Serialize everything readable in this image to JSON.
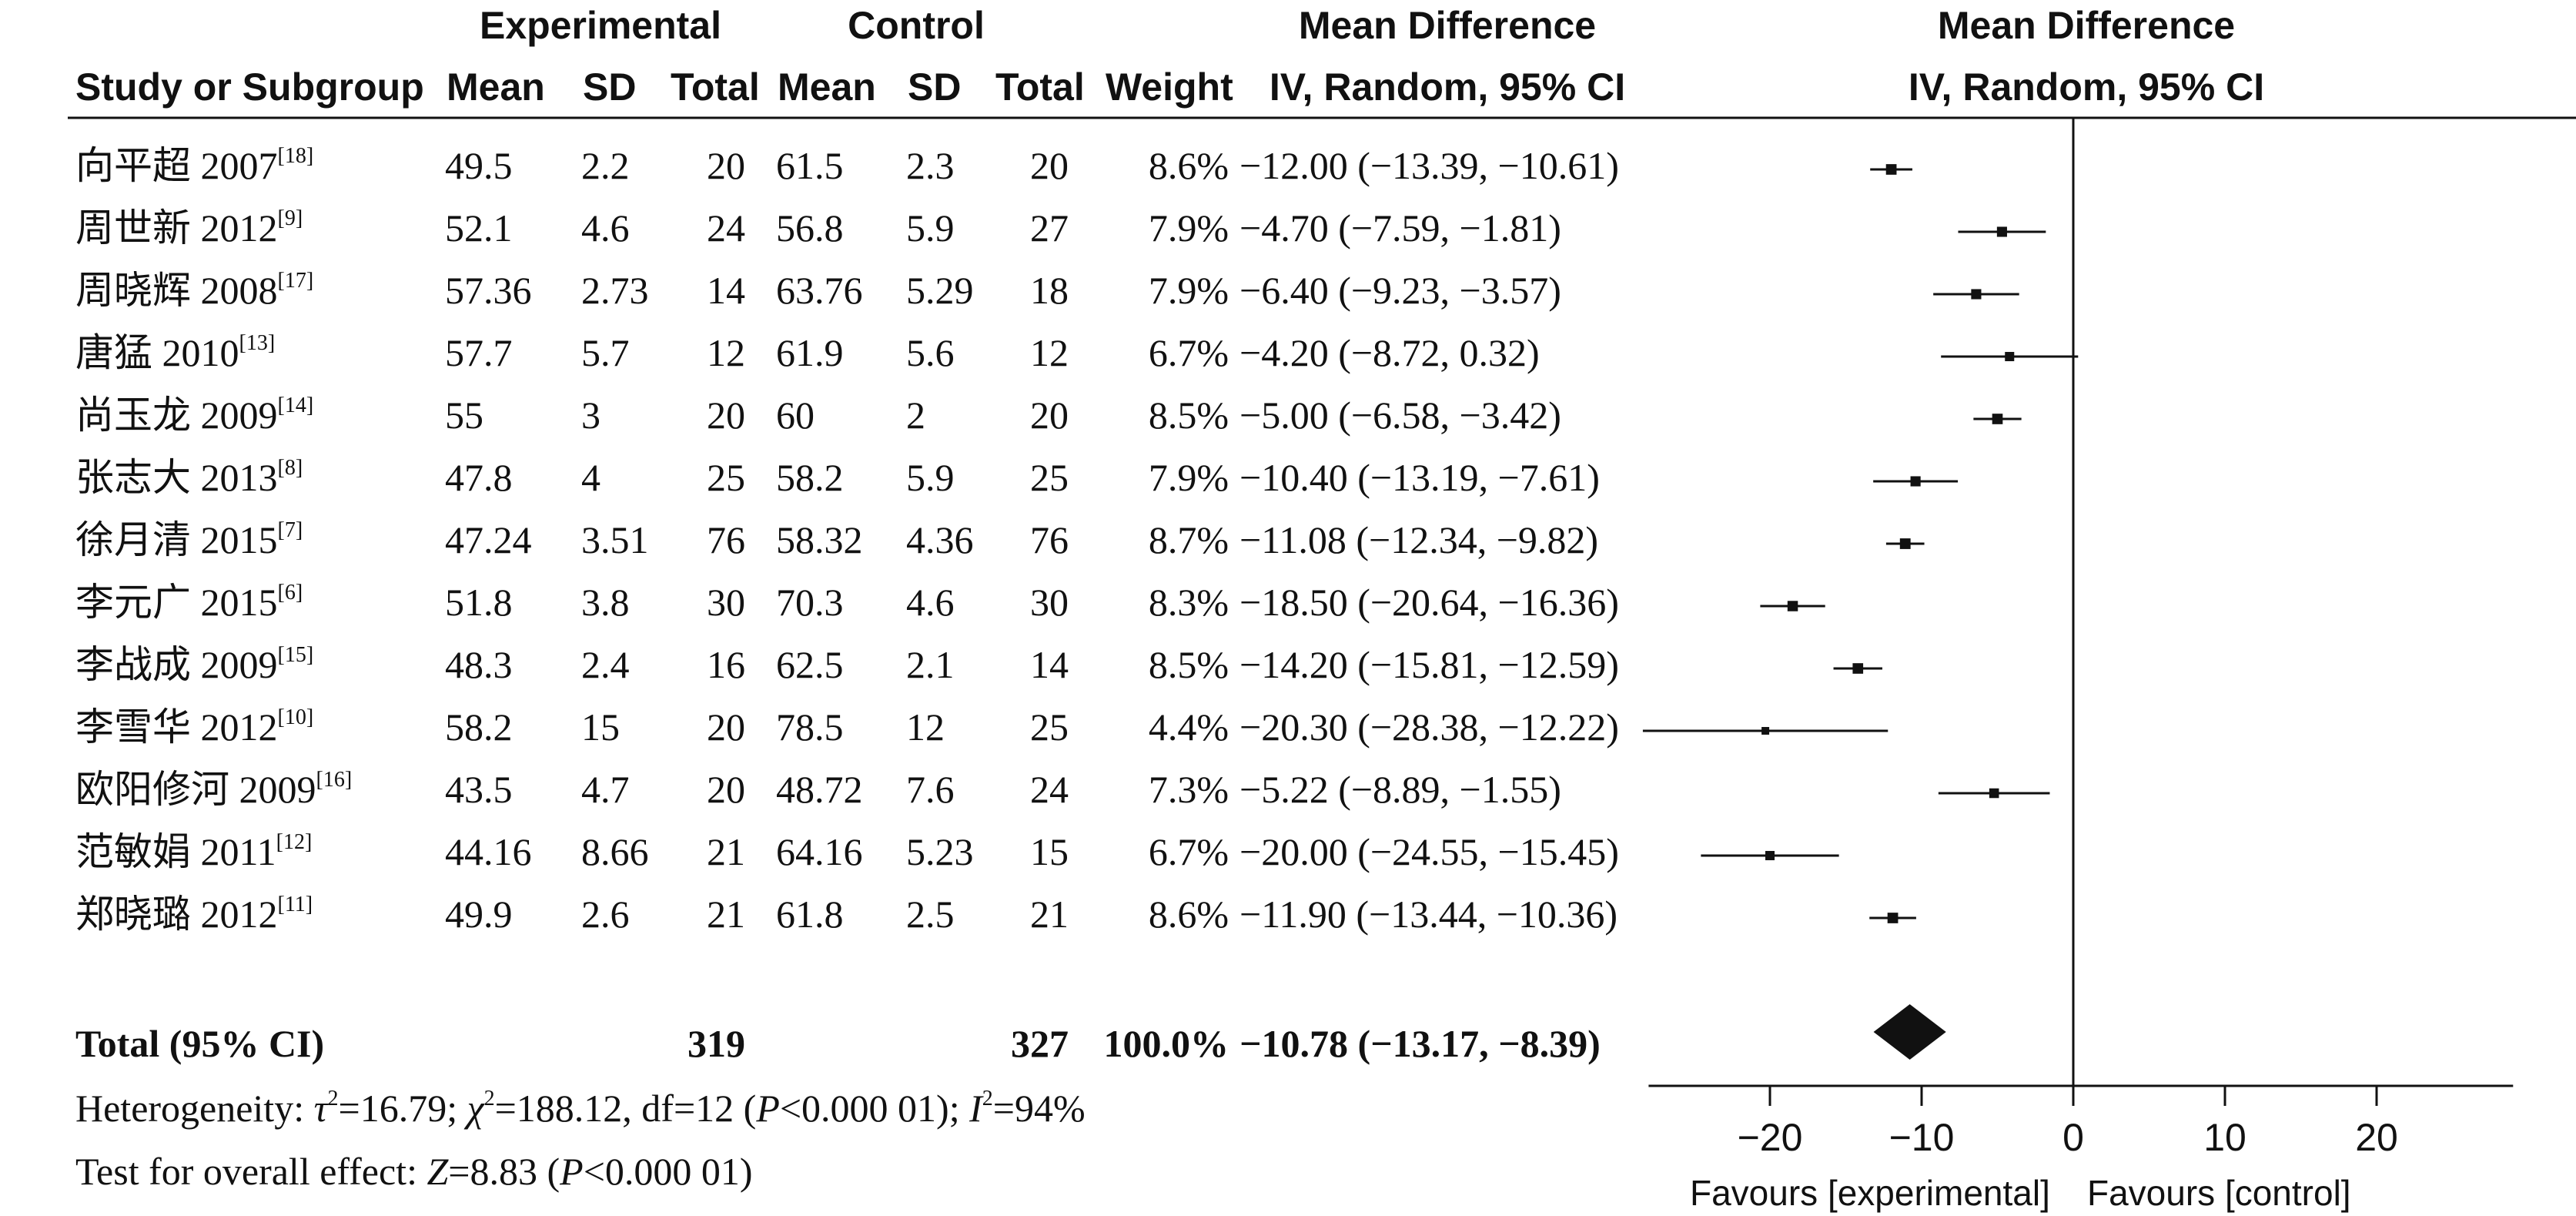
{
  "header": {
    "experimental": "Experimental",
    "control": "Control",
    "md_col": "Mean Difference",
    "md_plot": "Mean Difference",
    "study": "Study or Subgroup",
    "mean_e": "Mean",
    "sd_e": "SD",
    "total_e": "Total",
    "mean_c": "Mean",
    "sd_c": "SD",
    "total_c": "Total",
    "weight": "Weight",
    "method_col": "IV, Random, 95% CI",
    "method_plot": "IV, Random, 95% CI"
  },
  "footer": {
    "total_label": "Total (95% CI)",
    "total_e": "319",
    "total_c": "327",
    "total_weight": "100.0%",
    "total_ci": "−10.78 (−13.17, −8.39)",
    "het_prefix": "Heterogeneity: ",
    "het_tau": "τ",
    "het_tau_val": "=16.79; ",
    "het_chi": "χ",
    "het_chi_val": "=188.12, df=12 (",
    "het_p": "P",
    "het_p_val": "<0.000 01); ",
    "het_i": "I",
    "het_i_val": "=94%",
    "test_prefix": "Test for overall effect: ",
    "test_z": "Z",
    "test_z_val": "=8.83 (",
    "test_p": "P",
    "test_p_val": "<0.000 01)",
    "favours_left": "Favours [experimental]",
    "favours_right": "Favours [control]"
  },
  "chart_data": {
    "type": "forest",
    "xlabel_left": "Favours [experimental]",
    "xlabel_right": "Favours [control]",
    "xlim": [
      -28,
      29
    ],
    "xticks": [
      -20,
      -10,
      0,
      10,
      20
    ],
    "xtick_labels": [
      "−20",
      "−10",
      "0",
      "10",
      "20"
    ],
    "studies": [
      {
        "name": "向平超 2007",
        "ref": "[18]",
        "mean_e": "49.5",
        "sd_e": "2.2",
        "n_e": "20",
        "mean_c": "61.5",
        "sd_c": "2.3",
        "n_c": "20",
        "weight": "8.6%",
        "ci_text": "−12.00 (−13.39, −10.61)",
        "md": -12.0,
        "lo": -13.39,
        "hi": -10.61,
        "w": 8.6
      },
      {
        "name": "周世新 2012",
        "ref": "[9]",
        "mean_e": "52.1",
        "sd_e": "4.6",
        "n_e": "24",
        "mean_c": "56.8",
        "sd_c": "5.9",
        "n_c": "27",
        "weight": "7.9%",
        "ci_text": "−4.70 (−7.59, −1.81)",
        "md": -4.7,
        "lo": -7.59,
        "hi": -1.81,
        "w": 7.9
      },
      {
        "name": "周晓辉 2008",
        "ref": "[17]",
        "mean_e": "57.36",
        "sd_e": "2.73",
        "n_e": "14",
        "mean_c": "63.76",
        "sd_c": "5.29",
        "n_c": "18",
        "weight": "7.9%",
        "ci_text": "−6.40 (−9.23, −3.57)",
        "md": -6.4,
        "lo": -9.23,
        "hi": -3.57,
        "w": 7.9
      },
      {
        "name": "唐猛 2010",
        "ref": "[13]",
        "mean_e": "57.7",
        "sd_e": "5.7",
        "n_e": "12",
        "mean_c": "61.9",
        "sd_c": "5.6",
        "n_c": "12",
        "weight": "6.7%",
        "ci_text": "−4.20 (−8.72, 0.32)",
        "md": -4.2,
        "lo": -8.72,
        "hi": 0.32,
        "w": 6.7
      },
      {
        "name": "尚玉龙 2009",
        "ref": "[14]",
        "mean_e": "55",
        "sd_e": "3",
        "n_e": "20",
        "mean_c": "60",
        "sd_c": "2",
        "n_c": "20",
        "weight": "8.5%",
        "ci_text": "−5.00 (−6.58, −3.42)",
        "md": -5.0,
        "lo": -6.58,
        "hi": -3.42,
        "w": 8.5
      },
      {
        "name": "张志大 2013",
        "ref": "[8]",
        "mean_e": "47.8",
        "sd_e": "4",
        "n_e": "25",
        "mean_c": "58.2",
        "sd_c": "5.9",
        "n_c": "25",
        "weight": "7.9%",
        "ci_text": "−10.40 (−13.19, −7.61)",
        "md": -10.4,
        "lo": -13.19,
        "hi": -7.61,
        "w": 7.9
      },
      {
        "name": "徐月清 2015",
        "ref": "[7]",
        "mean_e": "47.24",
        "sd_e": "3.51",
        "n_e": "76",
        "mean_c": "58.32",
        "sd_c": "4.36",
        "n_c": "76",
        "weight": "8.7%",
        "ci_text": "−11.08 (−12.34, −9.82)",
        "md": -11.08,
        "lo": -12.34,
        "hi": -9.82,
        "w": 8.7
      },
      {
        "name": "李元广 2015",
        "ref": "[6]",
        "mean_e": "51.8",
        "sd_e": "3.8",
        "n_e": "30",
        "mean_c": "70.3",
        "sd_c": "4.6",
        "n_c": "30",
        "weight": "8.3%",
        "ci_text": "−18.50 (−20.64, −16.36)",
        "md": -18.5,
        "lo": -20.64,
        "hi": -16.36,
        "w": 8.3
      },
      {
        "name": "李战成 2009",
        "ref": "[15]",
        "mean_e": "48.3",
        "sd_e": "2.4",
        "n_e": "16",
        "mean_c": "62.5",
        "sd_c": "2.1",
        "n_c": "14",
        "weight": "8.5%",
        "ci_text": "−14.20 (−15.81, −12.59)",
        "md": -14.2,
        "lo": -15.81,
        "hi": -12.59,
        "w": 8.5
      },
      {
        "name": "李雪华 2012",
        "ref": "[10]",
        "mean_e": "58.2",
        "sd_e": "15",
        "n_e": "20",
        "mean_c": "78.5",
        "sd_c": "12",
        "n_c": "25",
        "weight": "4.4%",
        "ci_text": "−20.30 (−28.38, −12.22)",
        "md": -20.3,
        "lo": -28.38,
        "hi": -12.22,
        "w": 4.4
      },
      {
        "name": "欧阳修河 2009",
        "ref": "[16]",
        "mean_e": "43.5",
        "sd_e": "4.7",
        "n_e": "20",
        "mean_c": "48.72",
        "sd_c": "7.6",
        "n_c": "24",
        "weight": "7.3%",
        "ci_text": "−5.22 (−8.89, −1.55)",
        "md": -5.22,
        "lo": -8.89,
        "hi": -1.55,
        "w": 7.3
      },
      {
        "name": "范敏娟 2011",
        "ref": "[12]",
        "mean_e": "44.16",
        "sd_e": "8.66",
        "n_e": "21",
        "mean_c": "64.16",
        "sd_c": "5.23",
        "n_c": "15",
        "weight": "6.7%",
        "ci_text": "−20.00 (−24.55, −15.45)",
        "md": -20.0,
        "lo": -24.55,
        "hi": -15.45,
        "w": 6.7
      },
      {
        "name": "郑晓璐 2012",
        "ref": "[11]",
        "mean_e": "49.9",
        "sd_e": "2.6",
        "n_e": "21",
        "mean_c": "61.8",
        "sd_c": "2.5",
        "n_c": "21",
        "weight": "8.6%",
        "ci_text": "−11.90 (−13.44, −10.36)",
        "md": -11.9,
        "lo": -13.44,
        "hi": -10.36,
        "w": 8.6
      }
    ],
    "overall": {
      "md": -10.78,
      "lo": -13.17,
      "hi": -8.39
    }
  }
}
